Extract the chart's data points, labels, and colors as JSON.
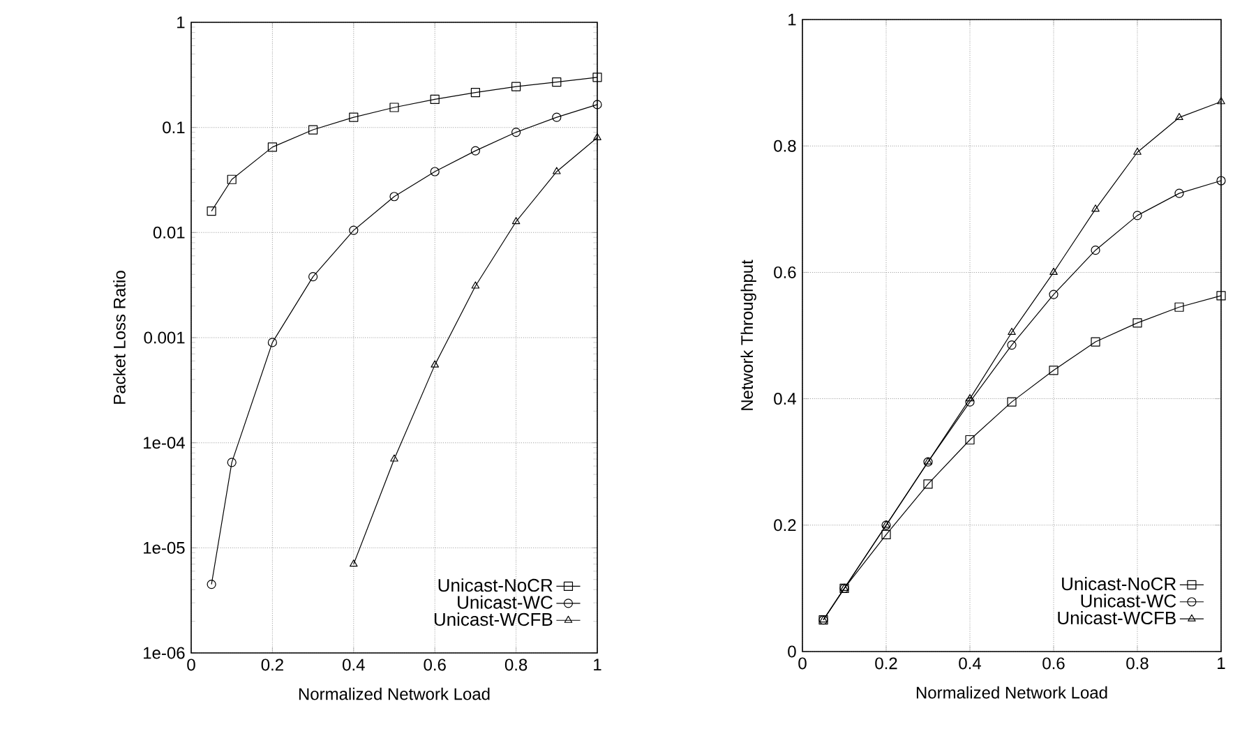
{
  "chart_data": [
    {
      "type": "line",
      "xlabel": "Normalized Network Load",
      "ylabel": "Packet Loss Ratio",
      "log": "y",
      "grid": true,
      "legend": "bottom right",
      "xlim": [
        0,
        1
      ],
      "ylim": [
        1e-06,
        1
      ],
      "xticks": [
        0,
        0.2,
        0.4,
        0.6,
        0.8,
        1
      ],
      "yticks": [
        {
          "value": 1e-06,
          "label": "1e-06"
        },
        {
          "value": 1e-05,
          "label": "1e-05"
        },
        {
          "value": 0.0001,
          "label": "1e-04"
        },
        0.001,
        0.01,
        0.1,
        1
      ],
      "x": [
        0.05,
        0.1,
        0.2,
        0.3,
        0.4,
        0.5,
        0.6,
        0.7,
        0.8,
        0.9,
        1.0
      ],
      "series": [
        {
          "name": "Unicast-NoCR",
          "color": "#000000",
          "marker": "square",
          "values": [
            0.016,
            0.032,
            0.065,
            0.095,
            0.125,
            0.155,
            0.185,
            0.215,
            0.245,
            0.27,
            0.3
          ]
        },
        {
          "name": "Unicast-WC",
          "color": "#000000",
          "marker": "circle",
          "values": [
            4.5e-06,
            6.5e-05,
            0.0009,
            0.0038,
            0.0105,
            0.022,
            0.038,
            0.06,
            0.09,
            0.125,
            0.165
          ]
        },
        {
          "name": "Unicast-WCFB",
          "color": "#000000",
          "marker": "triangle",
          "x": [
            0.4,
            0.5,
            0.6,
            0.7,
            0.8,
            0.9,
            1.0
          ],
          "values": [
            7e-06,
            7e-05,
            0.00055,
            0.0031,
            0.0127,
            0.038,
            0.08
          ]
        }
      ]
    },
    {
      "type": "line",
      "xlabel": "Normalized Network Load",
      "ylabel": "Network Throughput",
      "grid": true,
      "legend": "bottom right",
      "xlim": [
        0,
        1
      ],
      "ylim": [
        0,
        1
      ],
      "xticks": [
        0,
        0.2,
        0.4,
        0.6,
        0.8,
        1
      ],
      "yticks": [
        0,
        0.2,
        0.4,
        0.6,
        0.8,
        1
      ],
      "x": [
        0.05,
        0.1,
        0.2,
        0.3,
        0.4,
        0.5,
        0.6,
        0.7,
        0.8,
        0.9,
        1.0
      ],
      "series": [
        {
          "name": "Unicast-NoCR",
          "color": "#000000",
          "marker": "square",
          "values": [
            0.05,
            0.1,
            0.185,
            0.265,
            0.335,
            0.395,
            0.445,
            0.49,
            0.52,
            0.545,
            0.563
          ]
        },
        {
          "name": "Unicast-WC",
          "color": "#000000",
          "marker": "circle",
          "values": [
            0.05,
            0.1,
            0.2,
            0.3,
            0.395,
            0.485,
            0.565,
            0.635,
            0.69,
            0.725,
            0.745
          ]
        },
        {
          "name": "Unicast-WCFB",
          "color": "#000000",
          "marker": "triangle",
          "values": [
            0.05,
            0.1,
            0.2,
            0.3,
            0.4,
            0.505,
            0.6,
            0.7,
            0.79,
            0.845,
            0.87
          ]
        }
      ]
    }
  ]
}
